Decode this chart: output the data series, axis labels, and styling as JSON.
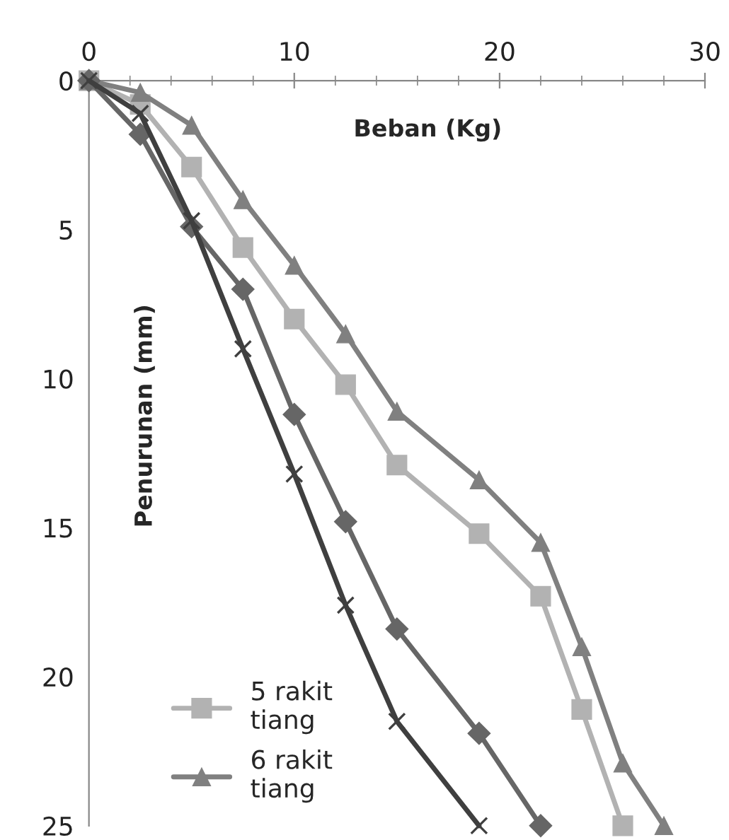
{
  "chart_data": {
    "type": "line",
    "xlabel": "Beban (Kg)",
    "ylabel": "Penurunan (mm)",
    "xlim": [
      0,
      30
    ],
    "xticks": [
      0,
      10,
      20,
      30
    ],
    "ylim": [
      25,
      0
    ],
    "yticks": [
      0,
      5,
      10,
      15,
      20,
      25
    ],
    "grid": false,
    "legend": "bottom left",
    "line_style": "solid",
    "series": [
      {
        "name": "5 rakit tiang",
        "color": "#b2b2b2",
        "marker": "square",
        "x": [
          0,
          2.5,
          5,
          7.5,
          10,
          12.5,
          15,
          19,
          22,
          24,
          26
        ],
        "values": [
          0,
          0.8,
          2.9,
          5.6,
          8.0,
          10.2,
          12.9,
          15.2,
          17.3,
          21.1,
          25
        ]
      },
      {
        "name": "6 rakit tiang",
        "color": "#808080",
        "marker": "triangle",
        "x": [
          0,
          2.5,
          5,
          7.5,
          10,
          12.5,
          15,
          19,
          22,
          24,
          26,
          28
        ],
        "values": [
          0,
          0.4,
          1.5,
          4.0,
          6.2,
          8.5,
          11.1,
          13.4,
          15.5,
          19.0,
          22.9,
          25
        ]
      },
      {
        "color": "#666666",
        "marker": "diamond",
        "x": [
          0,
          2.5,
          5,
          7.5,
          10,
          12.5,
          15,
          19,
          22
        ],
        "values": [
          0,
          1.8,
          4.9,
          7.0,
          11.2,
          14.8,
          18.4,
          21.9,
          25
        ]
      },
      {
        "color": "#3f3f3f",
        "marker": "cross",
        "x": [
          0,
          2.5,
          5,
          7.5,
          10,
          12.5,
          15,
          19
        ],
        "values": [
          0,
          1.1,
          4.7,
          9.0,
          13.2,
          17.6,
          21.5,
          25
        ]
      }
    ]
  }
}
